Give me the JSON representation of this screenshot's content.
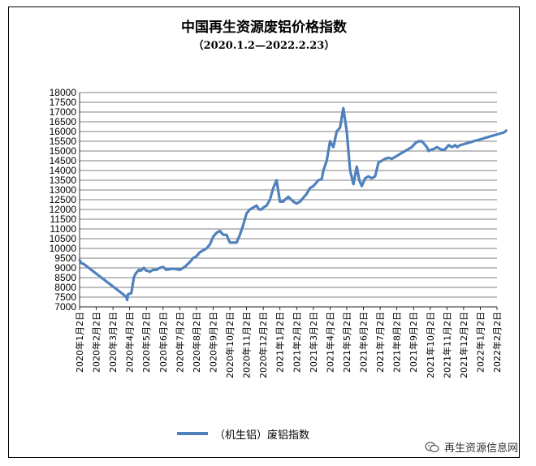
{
  "chart_data": {
    "type": "line",
    "title": "中国再生资源废铝价格指数",
    "subtitle": "（2020.1.2—2022.2.23）",
    "ylim": [
      7000,
      18000
    ],
    "yticks": [
      7000,
      7500,
      8000,
      8500,
      9000,
      9500,
      10000,
      10500,
      11000,
      11500,
      12000,
      12500,
      13000,
      13500,
      14000,
      14500,
      15000,
      15500,
      16000,
      16500,
      17000,
      17500,
      18000
    ],
    "categories": [
      "2020年1月2日",
      "2020年2月2日",
      "2020年3月2日",
      "2020年4月2日",
      "2020年5月2日",
      "2020年6月2日",
      "2020年7月2日",
      "2020年8月2日",
      "2020年9月2日",
      "2020年10月2日",
      "2020年11月2日",
      "2020年12月2日",
      "2021年1月2日",
      "2021年2月2日",
      "2021年3月2日",
      "2021年4月2日",
      "2021年5月2日",
      "2021年6月2日",
      "2021年7月2日",
      "2021年8月2日",
      "2021年9月2日",
      "2021年10月2日",
      "2021年11月2日",
      "2021年12月2日",
      "2022年1月2日",
      "2022年2月2日"
    ],
    "grid": true,
    "legend_position": "bottom",
    "series": [
      {
        "name": "（机生铝）废铝指数",
        "color": "#4f81bd",
        "x": [
          0,
          0.1,
          0.25,
          2.6,
          2.8,
          2.85,
          2.9,
          3.1,
          3.25,
          3.35,
          3.45,
          3.55,
          3.65,
          3.85,
          4.0,
          4.1,
          4.2,
          4.4,
          4.6,
          4.8,
          5.0,
          5.2,
          5.5,
          5.7,
          6.0,
          6.3,
          6.6,
          6.8,
          7.0,
          7.2,
          7.4,
          7.6,
          7.8,
          8.0,
          8.2,
          8.4,
          8.6,
          8.8,
          9.0,
          9.2,
          9.4,
          9.6,
          9.8,
          10.0,
          10.2,
          10.4,
          10.6,
          10.75,
          10.9,
          11.0,
          11.2,
          11.4,
          11.5,
          11.6,
          11.8,
          12.0,
          12.2,
          12.3,
          12.5,
          12.8,
          13.0,
          13.2,
          13.4,
          13.6,
          13.8,
          14.0,
          14.1,
          14.3,
          14.5,
          14.6,
          14.8,
          15.0,
          15.2,
          15.4,
          15.6,
          15.8,
          16.0,
          16.2,
          16.4,
          16.6,
          16.75,
          16.9,
          17.1,
          17.3,
          17.5,
          17.7,
          17.9,
          18.1,
          18.3,
          18.5,
          18.7,
          18.9,
          19.1,
          19.3,
          19.5,
          19.7,
          19.9,
          20.1,
          20.3,
          20.5,
          20.7,
          20.8,
          20.9,
          21.0,
          21.2,
          21.4,
          21.6,
          21.8,
          21.9,
          22.0,
          22.1,
          22.2,
          22.3,
          22.4,
          22.5,
          22.6,
          22.7,
          22.8,
          23.0,
          23.2,
          23.4,
          23.6,
          23.8,
          24.0,
          24.2,
          24.4,
          24.6,
          24.8,
          25.0,
          25.2,
          25.4,
          25.5,
          25.55
        ],
        "values": [
          9400,
          9250,
          9200,
          7650,
          7500,
          7350,
          7650,
          7700,
          8500,
          8700,
          8800,
          8900,
          8850,
          9000,
          8850,
          8850,
          8800,
          8900,
          8900,
          9000,
          9050,
          8900,
          8950,
          8950,
          8900,
          9050,
          9300,
          9500,
          9600,
          9800,
          9900,
          10000,
          10200,
          10600,
          10800,
          10900,
          10700,
          10700,
          10300,
          10300,
          10300,
          10700,
          11200,
          11800,
          12000,
          12100,
          12200,
          12000,
          12000,
          12100,
          12200,
          12500,
          12800,
          13100,
          13500,
          12400,
          12400,
          12500,
          12650,
          12400,
          12300,
          12400,
          12600,
          12800,
          13100,
          13200,
          13300,
          13500,
          13550,
          14000,
          14500,
          15500,
          15200,
          16000,
          16200,
          17200,
          16000,
          14000,
          13300,
          14200,
          13500,
          13200,
          13600,
          13700,
          13600,
          13700,
          14400,
          14500,
          14600,
          14650,
          14600,
          14700,
          14800,
          14900,
          15000,
          15100,
          15200,
          15400,
          15500,
          15500,
          15300,
          15200,
          15000,
          15050,
          15100,
          15200,
          15100,
          15050,
          15100,
          15200,
          15300,
          15250,
          15200,
          15250,
          15300,
          15200,
          15250,
          15300,
          15350,
          15400,
          15450,
          15500,
          15550,
          15600,
          15650,
          15700,
          15750,
          15800,
          15850,
          15900,
          15950,
          16000,
          16050
        ]
      }
    ]
  },
  "watermark": {
    "text": "再生资源信息网",
    "icon": "wechat-icon"
  }
}
